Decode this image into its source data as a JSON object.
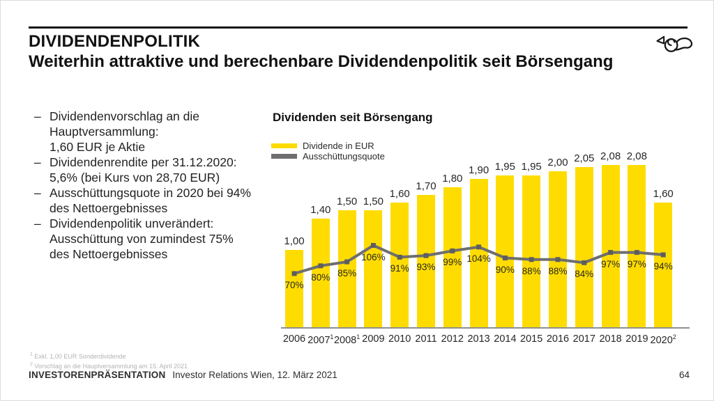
{
  "header": {
    "title": "DIVIDENDENPOLITIK",
    "subtitle": "Weiterhin attraktive und berechenbare Dividendenpolitik seit Börsengang"
  },
  "logo": {
    "name": "austrian-post-posthorn-logo"
  },
  "bullets": [
    "Dividendenvorschlag an die\nHauptversammlung:\n1,60 EUR je Aktie",
    "Dividendenrendite per 31.12.2020:\n5,6% (bei Kurs von 28,70 EUR)",
    "Ausschüttungsquote in 2020 bei 94%\ndes Nettoergebnisses",
    "Dividendenpolitik unverändert:\nAusschüttung von zumindest 75%\ndes Nettoergebnisses"
  ],
  "chart_data": {
    "type": "bar",
    "title": "Dividenden seit Börsengang",
    "legend": [
      {
        "label": "Dividende in EUR",
        "color": "#FFDC00",
        "kind": "bar"
      },
      {
        "label": "Ausschüttungsquote",
        "color": "#6E6E6E",
        "kind": "line"
      }
    ],
    "categories": [
      {
        "year": "2006",
        "sup": ""
      },
      {
        "year": "2007",
        "sup": "1"
      },
      {
        "year": "2008",
        "sup": "1"
      },
      {
        "year": "2009",
        "sup": ""
      },
      {
        "year": "2010",
        "sup": ""
      },
      {
        "year": "2011",
        "sup": ""
      },
      {
        "year": "2012",
        "sup": ""
      },
      {
        "year": "2013",
        "sup": ""
      },
      {
        "year": "2014",
        "sup": ""
      },
      {
        "year": "2015",
        "sup": ""
      },
      {
        "year": "2016",
        "sup": ""
      },
      {
        "year": "2017",
        "sup": ""
      },
      {
        "year": "2018",
        "sup": ""
      },
      {
        "year": "2019",
        "sup": ""
      },
      {
        "year": "2020",
        "sup": "2"
      }
    ],
    "series": [
      {
        "name": "Dividende in EUR",
        "values": [
          1.0,
          1.4,
          1.5,
          1.5,
          1.6,
          1.7,
          1.8,
          1.9,
          1.95,
          1.95,
          2.0,
          2.05,
          2.08,
          2.08,
          1.6
        ],
        "labels": [
          "1,00",
          "1,40",
          "1,50",
          "1,50",
          "1,60",
          "1,70",
          "1,80",
          "1,90",
          "1,95",
          "1,95",
          "2,00",
          "2,05",
          "2,08",
          "2,08",
          "1,60"
        ]
      },
      {
        "name": "Ausschüttungsquote",
        "values": [
          70,
          80,
          85,
          106,
          91,
          93,
          99,
          104,
          90,
          88,
          88,
          84,
          97,
          97,
          94
        ],
        "labels": [
          "70%",
          "80%",
          "85%",
          "106%",
          "91%",
          "93%",
          "99%",
          "104%",
          "90%",
          "88%",
          "88%",
          "84%",
          "97%",
          "97%",
          "94%"
        ]
      }
    ],
    "colors": {
      "bar": "#FFDC00",
      "line": "#6E6E6E",
      "marker": "#5E5E5E"
    },
    "layout_hints": {
      "grid": false,
      "legend_position": "top-left",
      "baseline_shared": true
    }
  },
  "footnotes": [
    {
      "marker": "1",
      "text": "Exkl. 1,00 EUR Sonderdividende"
    },
    {
      "marker": "2",
      "text": "Vorschlag an die Hauptversammlung am 15. April 2021"
    }
  ],
  "footer": {
    "left_primary": "INVESTORENPRÄSENTATION",
    "left_secondary": "Investor Relations Wien, 12. März 2021",
    "page": "64"
  }
}
